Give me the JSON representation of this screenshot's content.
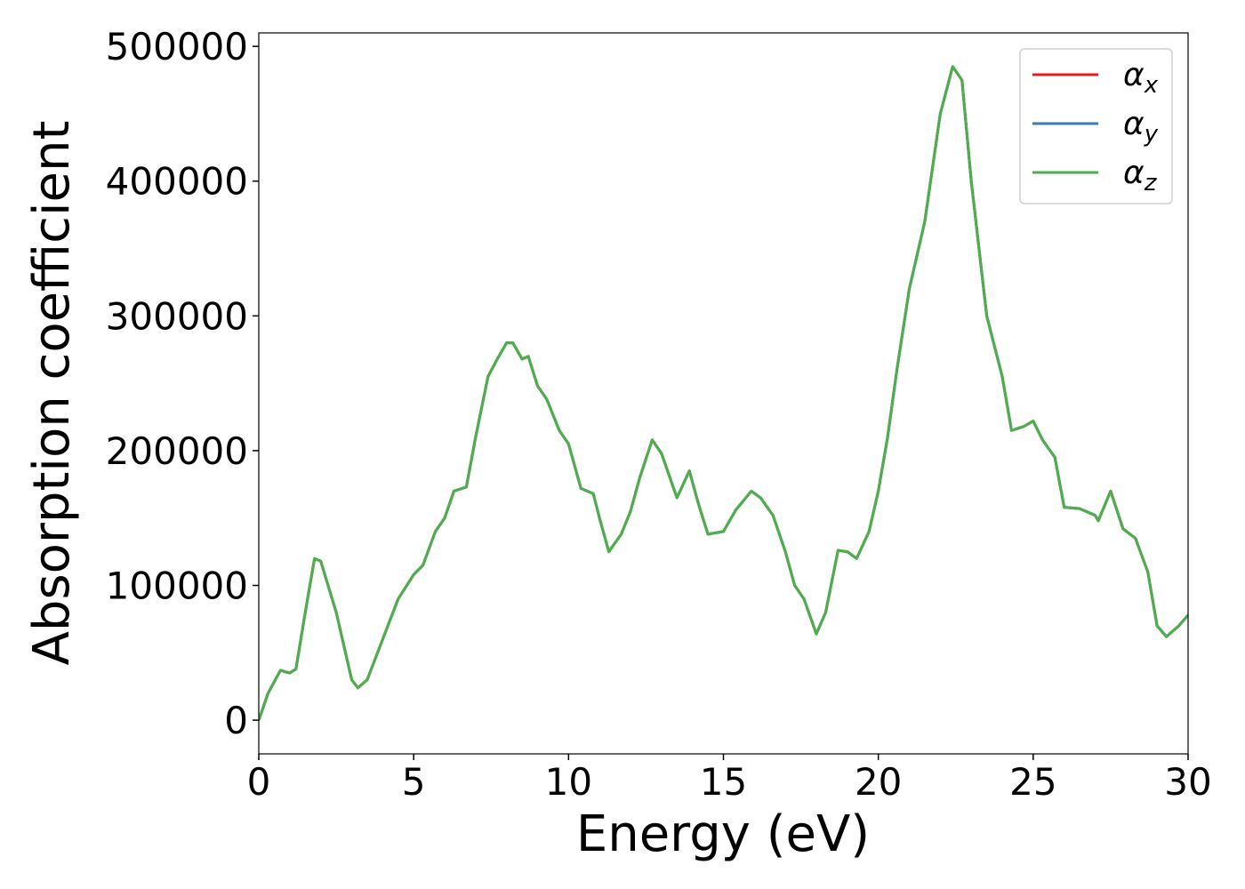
{
  "chart_data": {
    "type": "line",
    "xlabel": "Energy (eV)",
    "ylabel": "Absorption coefficient",
    "x": [
      0,
      0.3,
      0.7,
      1.0,
      1.2,
      1.5,
      1.8,
      2.0,
      2.5,
      3.0,
      3.2,
      3.5,
      4.0,
      4.5,
      5.0,
      5.3,
      5.7,
      6.0,
      6.3,
      6.7,
      7.0,
      7.4,
      7.7,
      8.0,
      8.2,
      8.5,
      8.7,
      9.0,
      9.3,
      9.7,
      10.0,
      10.4,
      10.8,
      11.0,
      11.3,
      11.7,
      12.0,
      12.3,
      12.7,
      13.0,
      13.5,
      13.9,
      14.2,
      14.5,
      15.0,
      15.4,
      15.9,
      16.2,
      16.6,
      17.0,
      17.3,
      17.6,
      18.0,
      18.3,
      18.7,
      19.0,
      19.3,
      19.7,
      20.0,
      20.3,
      20.6,
      21.0,
      21.5,
      22.0,
      22.4,
      22.7,
      23.0,
      23.5,
      24.0,
      24.3,
      24.7,
      25.0,
      25.3,
      25.7,
      26.0,
      26.5,
      27.0,
      27.1,
      27.5,
      27.9,
      28.3,
      28.7,
      29.0,
      29.3,
      29.7,
      30.0
    ],
    "series": [
      {
        "name": "αx",
        "color": "#e41a1c",
        "values": [
          0,
          20000,
          37000,
          35000,
          38000,
          80000,
          120000,
          118000,
          80000,
          30000,
          24000,
          30000,
          60000,
          90000,
          108000,
          115000,
          140000,
          150000,
          170000,
          173000,
          210000,
          255000,
          268000,
          280000,
          280000,
          268000,
          270000,
          248000,
          238000,
          215000,
          205000,
          172000,
          168000,
          150000,
          125000,
          138000,
          155000,
          180000,
          208000,
          198000,
          165000,
          185000,
          160000,
          138000,
          140000,
          156000,
          170000,
          165000,
          152000,
          125000,
          100000,
          90000,
          64000,
          80000,
          126000,
          125000,
          120000,
          140000,
          170000,
          210000,
          260000,
          320000,
          370000,
          450000,
          485000,
          475000,
          400000,
          300000,
          255000,
          215000,
          218000,
          222000,
          208000,
          195000,
          158000,
          157000,
          152000,
          148000,
          170000,
          142000,
          135000,
          110000,
          70000,
          62000,
          70000,
          78000
        ]
      },
      {
        "name": "αy",
        "color": "#377eb8",
        "values": [
          0,
          20000,
          37000,
          35000,
          38000,
          80000,
          120000,
          118000,
          80000,
          30000,
          24000,
          30000,
          60000,
          90000,
          108000,
          115000,
          140000,
          150000,
          170000,
          173000,
          210000,
          255000,
          268000,
          280000,
          280000,
          268000,
          270000,
          248000,
          238000,
          215000,
          205000,
          172000,
          168000,
          150000,
          125000,
          138000,
          155000,
          180000,
          208000,
          198000,
          165000,
          185000,
          160000,
          138000,
          140000,
          156000,
          170000,
          165000,
          152000,
          125000,
          100000,
          90000,
          64000,
          80000,
          126000,
          125000,
          120000,
          140000,
          170000,
          210000,
          260000,
          320000,
          370000,
          450000,
          485000,
          475000,
          400000,
          300000,
          255000,
          215000,
          218000,
          222000,
          208000,
          195000,
          158000,
          157000,
          152000,
          148000,
          170000,
          142000,
          135000,
          110000,
          70000,
          62000,
          70000,
          78000
        ]
      },
      {
        "name": "αz",
        "color": "#4daf4a",
        "values": [
          0,
          20000,
          37000,
          35000,
          38000,
          80000,
          120000,
          118000,
          80000,
          30000,
          24000,
          30000,
          60000,
          90000,
          108000,
          115000,
          140000,
          150000,
          170000,
          173000,
          210000,
          255000,
          268000,
          280000,
          280000,
          268000,
          270000,
          248000,
          238000,
          215000,
          205000,
          172000,
          168000,
          150000,
          125000,
          138000,
          155000,
          180000,
          208000,
          198000,
          165000,
          185000,
          160000,
          138000,
          140000,
          156000,
          170000,
          165000,
          152000,
          125000,
          100000,
          90000,
          64000,
          80000,
          126000,
          125000,
          120000,
          140000,
          170000,
          210000,
          260000,
          320000,
          370000,
          450000,
          485000,
          475000,
          400000,
          300000,
          255000,
          215000,
          218000,
          222000,
          208000,
          195000,
          158000,
          157000,
          152000,
          148000,
          170000,
          142000,
          135000,
          110000,
          70000,
          62000,
          70000,
          78000
        ]
      }
    ],
    "xlim": [
      0,
      30
    ],
    "xticks": [
      0,
      5,
      10,
      15,
      20,
      25,
      30
    ],
    "ylim": [
      -25000,
      510000
    ],
    "yticks": [
      0,
      100000,
      200000,
      300000,
      400000,
      500000
    ],
    "legend": "upper right"
  }
}
